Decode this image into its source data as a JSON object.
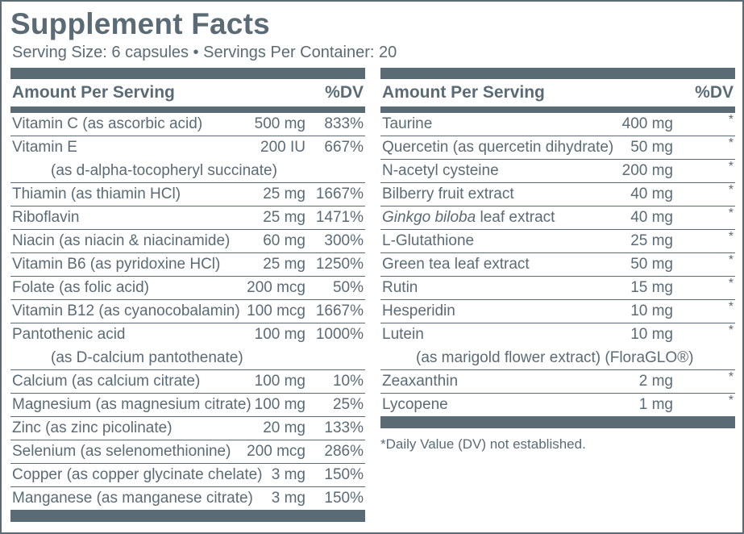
{
  "title": "Supplement Facts",
  "serving_line": "Serving Size: 6 capsules • Servings Per Container: 20",
  "left": {
    "header_label": "Amount Per Serving",
    "header_dv": "%DV",
    "rows": [
      {
        "name": "Vitamin C (as ascorbic acid)",
        "amount": "500 mg",
        "dv": "833%"
      },
      {
        "name": "Vitamin E",
        "amount": "200 IU",
        "dv": "667%",
        "sub": "(as d-alpha-tocopheryl succinate)"
      },
      {
        "name": "Thiamin (as thiamin HCl)",
        "amount": "25 mg",
        "dv": "1667%"
      },
      {
        "name": "Riboflavin",
        "amount": "25 mg",
        "dv": "1471%"
      },
      {
        "name": "Niacin (as niacin & niacinamide)",
        "amount": "60 mg",
        "dv": "300%"
      },
      {
        "name": "Vitamin B6 (as pyridoxine HCl)",
        "amount": "25 mg",
        "dv": "1250%"
      },
      {
        "name": "Folate (as folic acid)",
        "amount": "200 mcg",
        "dv": "50%"
      },
      {
        "name": "Vitamin B12 (as cyanocobalamin)",
        "amount": "100 mcg",
        "dv": "1667%"
      },
      {
        "name": "Pantothenic acid",
        "amount": "100 mg",
        "dv": "1000%",
        "sub": "(as D-calcium pantothenate)"
      },
      {
        "name": "Calcium (as calcium citrate)",
        "amount": "100 mg",
        "dv": "10%"
      },
      {
        "name": "Magnesium (as magnesium citrate)",
        "amount": "100 mg",
        "dv": "25%"
      },
      {
        "name": "Zinc (as zinc picolinate)",
        "amount": "20 mg",
        "dv": "133%"
      },
      {
        "name": "Selenium (as selenomethionine)",
        "amount": "200 mcg",
        "dv": "286%"
      },
      {
        "name": "Copper (as copper glycinate chelate)",
        "amount": "3 mg",
        "dv": "150%"
      },
      {
        "name": "Manganese (as manganese citrate)",
        "amount": "3 mg",
        "dv": "150%"
      }
    ]
  },
  "right": {
    "header_label": "Amount Per Serving",
    "header_dv": "%DV",
    "rows": [
      {
        "name": "Taurine",
        "amount": "400 mg",
        "dv": "*"
      },
      {
        "name": "Quercetin (as quercetin dihydrate)",
        "amount": "50 mg",
        "dv": "*"
      },
      {
        "name": "N-acetyl cysteine",
        "amount": "200 mg",
        "dv": "*"
      },
      {
        "name": "Bilberry fruit extract",
        "amount": "40 mg",
        "dv": "*"
      },
      {
        "name_italic": "Ginkgo biloba",
        "name": " leaf extract",
        "amount": "40 mg",
        "dv": "*"
      },
      {
        "name": "L-Glutathione",
        "amount": "25 mg",
        "dv": "*"
      },
      {
        "name": "Green tea leaf extract",
        "amount": "50 mg",
        "dv": "*"
      },
      {
        "name": "Rutin",
        "amount": "15 mg",
        "dv": "*"
      },
      {
        "name": "Hesperidin",
        "amount": "10 mg",
        "dv": "*"
      },
      {
        "name": "Lutein",
        "amount": "10 mg",
        "dv": "*",
        "sub": "(as marigold flower extract) (FloraGLO®)"
      },
      {
        "name": "Zeaxanthin",
        "amount": "2 mg",
        "dv": "*"
      },
      {
        "name": "Lycopene",
        "amount": "1 mg",
        "dv": "*"
      }
    ]
  },
  "footnote": "*Daily Value (DV) not established.",
  "colors": {
    "ink": "#5b6b76"
  }
}
